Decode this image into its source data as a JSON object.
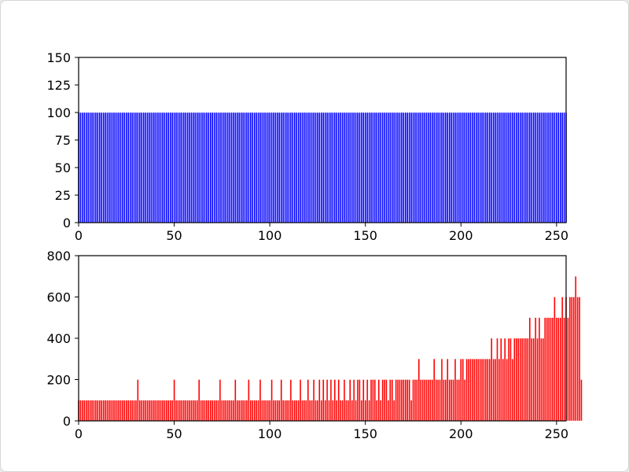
{
  "chart_data": [
    {
      "type": "bar",
      "title": "",
      "xlabel": "",
      "ylabel": "",
      "xlim": [
        0,
        255
      ],
      "ylim": [
        0,
        150
      ],
      "xticks": [
        "0",
        "50",
        "100",
        "150",
        "200",
        "250"
      ],
      "yticks": [
        "0",
        "25",
        "50",
        "75",
        "100",
        "125",
        "150"
      ],
      "grid": false,
      "legend": "none",
      "bar_color": "#0000ff",
      "series": [
        {
          "values": [
            100,
            100,
            100,
            100,
            100,
            100,
            100,
            100,
            100,
            100,
            100,
            100,
            100,
            100,
            100,
            100,
            100,
            100,
            100,
            100,
            100,
            100,
            100,
            100,
            100,
            100,
            100,
            100,
            100,
            100,
            100,
            100,
            100,
            100,
            100,
            100,
            100,
            100,
            100,
            100,
            100,
            100,
            100,
            100,
            100,
            100,
            100,
            100,
            100,
            100,
            100,
            100,
            100,
            100,
            100,
            100,
            100,
            100,
            100,
            100,
            100,
            100,
            100,
            100,
            100,
            100,
            100,
            100,
            100,
            100,
            100,
            100,
            100,
            100,
            100,
            100,
            100,
            100,
            100,
            100,
            100,
            100,
            100,
            100,
            100,
            100,
            100,
            100,
            100,
            100,
            100,
            100,
            100,
            100,
            100,
            100,
            100,
            100,
            100,
            100,
            100,
            100,
            100,
            100,
            100,
            100,
            100,
            100,
            100,
            100,
            100,
            100,
            100,
            100,
            100,
            100,
            100,
            100,
            100,
            100,
            100,
            100,
            100,
            100,
            100,
            100,
            100,
            100,
            100,
            100,
            100,
            100,
            100,
            100,
            100,
            100,
            100,
            100,
            100,
            100,
            100,
            100,
            100,
            100,
            100,
            100,
            100,
            100,
            100,
            100,
            100,
            100,
            100,
            100,
            100,
            100,
            100,
            100,
            100,
            100,
            100,
            100,
            100,
            100,
            100,
            100,
            100,
            100,
            100,
            100,
            100,
            100,
            100,
            100,
            100,
            100,
            100,
            100,
            100,
            100,
            100,
            100,
            100,
            100,
            100,
            100,
            100,
            100,
            100,
            100,
            100,
            100,
            100,
            100,
            100,
            100,
            100,
            100,
            100,
            100,
            100,
            100,
            100,
            100,
            100,
            100,
            100,
            100,
            100,
            100,
            100,
            100,
            100,
            100,
            100,
            100,
            100,
            100,
            100,
            100,
            100,
            100,
            100,
            100,
            100,
            100,
            100,
            100,
            100,
            100,
            100,
            100,
            100,
            100,
            100,
            100,
            100,
            100,
            100,
            100,
            100,
            100,
            100,
            100,
            100,
            100,
            100,
            100,
            100,
            100,
            100,
            100,
            100,
            100,
            100,
            100
          ]
        }
      ]
    },
    {
      "type": "bar",
      "title": "",
      "xlabel": "",
      "ylabel": "",
      "xlim": [
        0,
        255
      ],
      "ylim": [
        0,
        800
      ],
      "xticks": [
        "0",
        "50",
        "100",
        "150",
        "200",
        "250"
      ],
      "yticks": [
        "0",
        "200",
        "400",
        "600",
        "800"
      ],
      "grid": false,
      "legend": "none",
      "bar_color": "#ff0000",
      "series": [
        {
          "values": [
            100,
            100,
            100,
            100,
            100,
            100,
            100,
            100,
            100,
            100,
            100,
            100,
            100,
            100,
            100,
            100,
            100,
            100,
            100,
            100,
            100,
            100,
            100,
            100,
            100,
            100,
            100,
            100,
            100,
            100,
            100,
            200,
            100,
            100,
            100,
            100,
            100,
            100,
            100,
            100,
            100,
            100,
            100,
            100,
            100,
            100,
            100,
            100,
            100,
            100,
            200,
            100,
            100,
            100,
            100,
            100,
            100,
            100,
            100,
            100,
            100,
            100,
            100,
            200,
            100,
            100,
            100,
            100,
            100,
            100,
            100,
            100,
            100,
            100,
            200,
            100,
            100,
            100,
            100,
            100,
            100,
            100,
            200,
            100,
            100,
            100,
            100,
            100,
            100,
            200,
            100,
            100,
            100,
            100,
            100,
            200,
            100,
            100,
            100,
            100,
            100,
            200,
            100,
            100,
            100,
            100,
            200,
            100,
            100,
            100,
            100,
            200,
            100,
            100,
            100,
            100,
            200,
            100,
            100,
            100,
            200,
            100,
            100,
            200,
            100,
            100,
            200,
            100,
            200,
            100,
            200,
            100,
            200,
            100,
            200,
            100,
            200,
            100,
            100,
            200,
            100,
            100,
            200,
            100,
            200,
            100,
            200,
            200,
            100,
            200,
            100,
            200,
            100,
            200,
            200,
            200,
            100,
            200,
            100,
            200,
            200,
            200,
            100,
            200,
            200,
            100,
            200,
            200,
            200,
            200,
            200,
            200,
            200,
            200,
            100,
            200,
            200,
            200,
            300,
            200,
            200,
            200,
            200,
            200,
            200,
            200,
            300,
            200,
            200,
            200,
            300,
            200,
            200,
            300,
            200,
            200,
            200,
            300,
            200,
            200,
            300,
            300,
            200,
            300,
            300,
            300,
            300,
            300,
            300,
            300,
            300,
            300,
            300,
            300,
            300,
            300,
            400,
            300,
            300,
            400,
            300,
            400,
            300,
            400,
            300,
            400,
            400,
            300,
            400,
            400,
            400,
            400,
            400,
            400,
            400,
            400,
            500,
            400,
            400,
            500,
            400,
            500,
            400,
            400,
            500,
            500,
            500,
            500,
            500,
            600,
            500,
            500,
            500,
            600,
            500,
            600,
            500,
            600,
            600,
            600,
            700,
            600,
            600,
            200
          ]
        }
      ]
    }
  ]
}
